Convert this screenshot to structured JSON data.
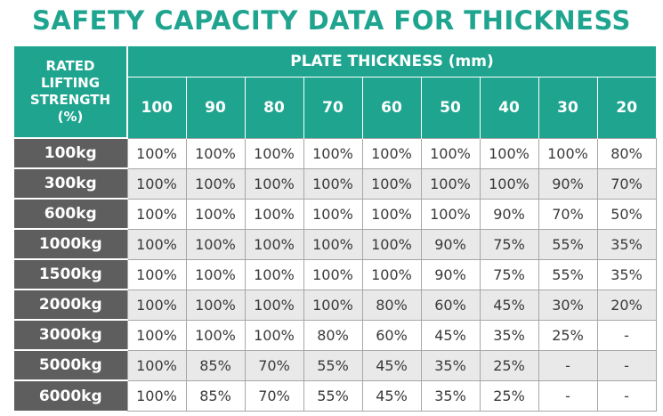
{
  "title": "SAFETY CAPACITY DATA FOR THICKNESS",
  "header": {
    "rated_lines": [
      "RATED",
      "LIFTING",
      "STRENGTH",
      "(%)"
    ],
    "plate_thickness": "PLATE THICKNESS (mm)",
    "thickness_values": [
      "100",
      "90",
      "80",
      "70",
      "60",
      "50",
      "40",
      "30",
      "20"
    ]
  },
  "rows": [
    {
      "label": "100kg",
      "values": [
        "100%",
        "100%",
        "100%",
        "100%",
        "100%",
        "100%",
        "100%",
        "100%",
        "80%"
      ]
    },
    {
      "label": "300kg",
      "values": [
        "100%",
        "100%",
        "100%",
        "100%",
        "100%",
        "100%",
        "100%",
        "90%",
        "70%"
      ]
    },
    {
      "label": "600kg",
      "values": [
        "100%",
        "100%",
        "100%",
        "100%",
        "100%",
        "100%",
        "90%",
        "70%",
        "50%"
      ]
    },
    {
      "label": "1000kg",
      "values": [
        "100%",
        "100%",
        "100%",
        "100%",
        "100%",
        "90%",
        "75%",
        "55%",
        "35%"
      ]
    },
    {
      "label": "1500kg",
      "values": [
        "100%",
        "100%",
        "100%",
        "100%",
        "100%",
        "90%",
        "75%",
        "55%",
        "35%"
      ]
    },
    {
      "label": "2000kg",
      "values": [
        "100%",
        "100%",
        "100%",
        "100%",
        "80%",
        "60%",
        "45%",
        "30%",
        "20%"
      ]
    },
    {
      "label": "3000kg",
      "values": [
        "100%",
        "100%",
        "100%",
        "80%",
        "60%",
        "45%",
        "35%",
        "25%",
        "-"
      ]
    },
    {
      "label": "5000kg",
      "values": [
        "100%",
        "85%",
        "70%",
        "55%",
        "45%",
        "35%",
        "25%",
        "-",
        "-"
      ]
    },
    {
      "label": "6000kg",
      "values": [
        "100%",
        "85%",
        "70%",
        "55%",
        "45%",
        "35%",
        "25%",
        "-",
        "-"
      ]
    }
  ],
  "colors": {
    "accent_teal": "#1fa58f",
    "row_label_gray": "#5e5e5e",
    "stripe_gray": "#e9e9e9",
    "border_gray": "#a7a7a7"
  }
}
